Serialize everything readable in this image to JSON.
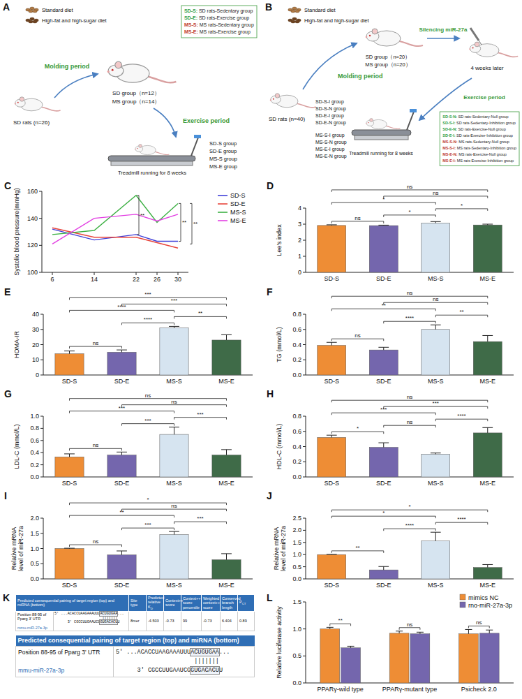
{
  "chart_data": [
    {
      "panel": "C",
      "type": "line",
      "y_label": "Systolic blood pressure(mmHg)",
      "x": [
        6,
        14,
        22,
        26,
        30
      ],
      "xlim": [
        4,
        32
      ],
      "xticks": [
        6,
        14,
        22,
        26,
        30
      ],
      "ylim": [
        100,
        160
      ],
      "yticks": [
        100,
        120,
        140,
        160
      ],
      "legend": "right",
      "series": [
        {
          "name": "SD-S",
          "color": "#3f3fd8",
          "values": [
            132,
            124,
            128,
            123,
            123
          ]
        },
        {
          "name": "SD-E",
          "color": "#e8453c",
          "values": [
            133,
            126,
            126,
            122,
            118
          ]
        },
        {
          "name": "MS-S",
          "color": "#3cb043",
          "values": [
            128,
            131,
            157,
            137,
            151
          ]
        },
        {
          "name": "MS-E",
          "color": "#e23fe2",
          "values": [
            121,
            140,
            143,
            138,
            143
          ]
        }
      ],
      "annotations": [
        {
          "x": 22,
          "y_range": [
            128,
            157
          ],
          "label": "**"
        },
        {
          "x": 30,
          "y_range": [
            123,
            151
          ],
          "label": "**"
        },
        {
          "x": 30,
          "y_range": [
            121,
            151
          ],
          "label": "**"
        }
      ]
    },
    {
      "panel": "D",
      "type": "bar",
      "y_label": "Lee's index",
      "categories": [
        "SD-S",
        "SD-E",
        "MS-S",
        "MS-E"
      ],
      "values": [
        2.92,
        2.91,
        3.07,
        2.95
      ],
      "errors": [
        0.04,
        0.03,
        0.09,
        0.05
      ],
      "colors": [
        "#ee8d35",
        "#7466ad",
        "#d6e4f0",
        "#3f6b48"
      ],
      "ylim": [
        0,
        4
      ],
      "yticks": [
        0,
        1,
        2,
        3,
        4
      ],
      "annotations": [
        {
          "groups": [
            "SD-S",
            "SD-E"
          ],
          "label": "ns"
        },
        {
          "groups": [
            "SD-E",
            "MS-S"
          ],
          "label": "*"
        },
        {
          "groups": [
            "MS-S",
            "MS-E"
          ],
          "label": "*"
        },
        {
          "groups": [
            "SD-S",
            "MS-S"
          ],
          "label": "*"
        },
        {
          "groups": [
            "SD-E",
            "MS-E"
          ],
          "label": "ns"
        },
        {
          "groups": [
            "SD-S",
            "MS-E"
          ],
          "label": "ns"
        }
      ]
    },
    {
      "panel": "E",
      "type": "bar",
      "y_label": "HOMA-IR",
      "categories": [
        "SD-S",
        "SD-E",
        "MS-S",
        "MS-E"
      ],
      "values": [
        14,
        15,
        31,
        23
      ],
      "errors": [
        1.8,
        1.5,
        1,
        3.5
      ],
      "colors": [
        "#ee8d35",
        "#7466ad",
        "#d6e4f0",
        "#3f6b48"
      ],
      "ylim": [
        0,
        40
      ],
      "yticks": [
        0,
        10,
        20,
        30,
        40
      ],
      "annotations": [
        {
          "groups": [
            "SD-S",
            "SD-E"
          ],
          "label": "ns"
        },
        {
          "groups": [
            "SD-E",
            "MS-S"
          ],
          "label": "****"
        },
        {
          "groups": [
            "MS-S",
            "MS-E"
          ],
          "label": "**"
        },
        {
          "groups": [
            "SD-S",
            "MS-S"
          ],
          "label": "****"
        },
        {
          "groups": [
            "SD-E",
            "MS-E"
          ],
          "label": "***"
        },
        {
          "groups": [
            "SD-S",
            "MS-E"
          ],
          "label": "***"
        }
      ]
    },
    {
      "panel": "F",
      "type": "bar",
      "y_label": "TG (mmol/L)",
      "categories": [
        "SD-S",
        "SD-E",
        "MS-S",
        "MS-E"
      ],
      "values": [
        0.39,
        0.33,
        0.6,
        0.44
      ],
      "errors": [
        0.04,
        0.035,
        0.06,
        0.08
      ],
      "colors": [
        "#ee8d35",
        "#7466ad",
        "#d6e4f0",
        "#3f6b48"
      ],
      "ylim": [
        0,
        0.8
      ],
      "yticks": [
        {
          "value": 0,
          "label": "0.0"
        },
        0.2,
        0.4,
        0.6,
        0.8
      ],
      "annotations": [
        {
          "groups": [
            "SD-S",
            "SD-E"
          ],
          "label": "ns"
        },
        {
          "groups": [
            "SD-E",
            "MS-S"
          ],
          "label": "****"
        },
        {
          "groups": [
            "MS-S",
            "MS-E"
          ],
          "label": "**"
        },
        {
          "groups": [
            "SD-S",
            "MS-S"
          ],
          "label": "**"
        },
        {
          "groups": [
            "SD-E",
            "MS-E"
          ],
          "label": "ns"
        },
        {
          "groups": [
            "SD-S",
            "MS-E"
          ],
          "label": "ns"
        }
      ]
    },
    {
      "panel": "G",
      "type": "bar",
      "y_label": "LDL-C (mmol/L)",
      "categories": [
        "SD-S",
        "SD-E",
        "MS-S",
        "MS-E"
      ],
      "values": [
        0.33,
        0.36,
        0.7,
        0.36
      ],
      "errors": [
        0.05,
        0.05,
        0.12,
        0.09
      ],
      "colors": [
        "#ee8d35",
        "#7466ad",
        "#d6e4f0",
        "#3f6b48"
      ],
      "ylim": [
        0,
        1
      ],
      "yticks": [
        {
          "value": 0,
          "label": "0.0"
        },
        0.2,
        0.4,
        0.6,
        0.8,
        {
          "value": 1,
          "label": "1.0"
        }
      ],
      "annotations": [
        {
          "groups": [
            "SD-S",
            "SD-E"
          ],
          "label": "ns"
        },
        {
          "groups": [
            "SD-E",
            "MS-S"
          ],
          "label": "***"
        },
        {
          "groups": [
            "MS-S",
            "MS-E"
          ],
          "label": "***"
        },
        {
          "groups": [
            "SD-S",
            "MS-S"
          ],
          "label": "***"
        },
        {
          "groups": [
            "SD-E",
            "MS-E"
          ],
          "label": "ns"
        },
        {
          "groups": [
            "SD-S",
            "MS-E"
          ],
          "label": "ns"
        }
      ]
    },
    {
      "panel": "H",
      "type": "bar",
      "y_label": "HDL-C (mmol/L)",
      "categories": [
        "SD-S",
        "SD-E",
        "MS-S",
        "MS-E"
      ],
      "values": [
        0.52,
        0.39,
        0.3,
        0.58
      ],
      "errors": [
        0.03,
        0.06,
        0.015,
        0.07
      ],
      "colors": [
        "#ee8d35",
        "#7466ad",
        "#d6e4f0",
        "#3f6b48"
      ],
      "ylim": [
        0,
        0.8
      ],
      "yticks": [
        {
          "value": 0,
          "label": "0.0"
        },
        0.2,
        0.4,
        0.6,
        0.8
      ],
      "annotations": [
        {
          "groups": [
            "SD-S",
            "SD-E"
          ],
          "label": "*"
        },
        {
          "groups": [
            "SD-E",
            "MS-S"
          ],
          "label": "ns"
        },
        {
          "groups": [
            "MS-S",
            "MS-E"
          ],
          "label": "****"
        },
        {
          "groups": [
            "SD-S",
            "MS-S"
          ],
          "label": "***"
        },
        {
          "groups": [
            "SD-E",
            "MS-E"
          ],
          "label": "***"
        },
        {
          "groups": [
            "SD-S",
            "MS-E"
          ],
          "label": "ns"
        }
      ]
    },
    {
      "panel": "I",
      "type": "bar",
      "y_label": "Relative mRNA level of miR-27a",
      "categories": [
        "SD-S",
        "SD-E",
        "MS-S",
        "MS-E"
      ],
      "values": [
        1.0,
        0.79,
        1.46,
        0.63
      ],
      "errors": [
        0.01,
        0.13,
        0.1,
        0.2
      ],
      "colors": [
        "#ee8d35",
        "#7466ad",
        "#d6e4f0",
        "#3f6b48"
      ],
      "ylim": [
        0,
        2
      ],
      "yticks": [
        {
          "value": 0,
          "label": "0.0"
        },
        0.5,
        {
          "value": 1,
          "label": "1.0"
        },
        1.5,
        {
          "value": 2,
          "label": "2.0"
        }
      ],
      "annotations": [
        {
          "groups": [
            "SD-S",
            "SD-E"
          ],
          "label": "ns"
        },
        {
          "groups": [
            "SD-E",
            "MS-S"
          ],
          "label": "***"
        },
        {
          "groups": [
            "MS-S",
            "MS-E"
          ],
          "label": "***"
        },
        {
          "groups": [
            "SD-S",
            "MS-S"
          ],
          "label": "**"
        },
        {
          "groups": [
            "SD-E",
            "MS-E"
          ],
          "label": "ns"
        },
        {
          "groups": [
            "SD-S",
            "MS-E"
          ],
          "label": "*"
        }
      ]
    },
    {
      "panel": "J",
      "type": "bar",
      "y_label": "Relative mRNA level of miR-27a",
      "categories": [
        "SD-S",
        "SD-E",
        "MS-S",
        "MS-E"
      ],
      "values": [
        1.0,
        0.37,
        1.56,
        0.47
      ],
      "errors": [
        0.01,
        0.14,
        0.36,
        0.12
      ],
      "colors": [
        "#ee8d35",
        "#7466ad",
        "#d6e4f0",
        "#3f6b48"
      ],
      "ylim": [
        0,
        2.5
      ],
      "yticks": [
        {
          "value": 0,
          "label": "0.0"
        },
        0.5,
        {
          "value": 1,
          "label": "1.0"
        },
        1.5,
        {
          "value": 2,
          "label": "2.0"
        },
        2.5
      ],
      "annotations": [
        {
          "groups": [
            "SD-S",
            "SD-E"
          ],
          "label": "**"
        },
        {
          "groups": [
            "SD-E",
            "MS-S"
          ],
          "label": "****"
        },
        {
          "groups": [
            "MS-S",
            "MS-E"
          ],
          "label": "****"
        },
        {
          "groups": [
            "SD-S",
            "MS-S"
          ],
          "label": "*"
        },
        {
          "groups": [
            "SD-S",
            "MS-E"
          ],
          "label": "*"
        }
      ]
    },
    {
      "panel": "L",
      "type": "bar",
      "y_label": "Relative luciferase activity",
      "categories": [
        "PPARγ-wild type",
        "PPARγ-mutant type",
        "Psicheck 2.0"
      ],
      "series": [
        {
          "name": "mimics NC",
          "color": "#ee8d35",
          "values": [
            1.0,
            0.92,
            0.91
          ],
          "errors": [
            0.03,
            0.04,
            0.08
          ]
        },
        {
          "name": "rno-miR-27a-3p",
          "color": "#7466ad",
          "values": [
            0.65,
            0.91,
            0.92
          ],
          "errors": [
            0.03,
            0.03,
            0.06
          ]
        }
      ],
      "ylim": [
        0,
        1.5
      ],
      "yticks": [
        {
          "value": 0,
          "label": "0.0"
        },
        0.5,
        {
          "value": 1,
          "label": "1.0"
        },
        1.5
      ],
      "legend": "top-right",
      "annotations": [
        {
          "category": "PPARγ-wild type",
          "label": "**"
        },
        {
          "category": "PPARγ-mutant type",
          "label": "ns"
        },
        {
          "category": "Psicheck 2.0",
          "label": "ns"
        }
      ]
    }
  ],
  "diagram_a": {
    "panel": "A",
    "diets": [
      "Standard diet",
      "High-fat and high-sugar diet"
    ],
    "source": "SD rats (n=26)",
    "stage1": "Molding period",
    "groups": [
      "SD group（n=12）",
      "MS group（n=14）"
    ],
    "stage2": "Exercise period",
    "treadmill": "Treadmill running for 8 weeks",
    "final_groups": [
      "SD-S group",
      "SD-E group",
      "MS-S group",
      "MS-E group"
    ],
    "legend": [
      {
        "code": "SD-S:",
        "text": " SD rats-Sedentary group",
        "color": "#2e9e44"
      },
      {
        "code": "SD-E:",
        "text": " SD rats-Exercise group",
        "color": "#2e9e44"
      },
      {
        "code": "MS-S:",
        "text": " MS rats-Sedentary group",
        "color": "#c0392b"
      },
      {
        "code": "MS-E:",
        "text": " MS rats-Exercise group",
        "color": "#c0392b"
      }
    ]
  },
  "diagram_b": {
    "panel": "B",
    "diets": [
      "Standard diet",
      "High-fat and high-sugar diet"
    ],
    "source": "SD rats (n=40)",
    "stage1": "Molding period",
    "groups": [
      "SD group（n=20）",
      "MS group（n=20）"
    ],
    "stage2": "Silencing miR-27a",
    "wait": "4 weeks later",
    "stage3": "Exercise period",
    "treadmill": "Treadmill running for 8 weeks",
    "final_groups": [
      [
        "SD-S-I group",
        "SD-S-N group",
        "SD-E-I group",
        "SD-E-N group"
      ],
      [
        "MS-S-I group",
        "MS-S-N group",
        "MS-E-I group",
        "MS-E-N group"
      ]
    ],
    "legend": [
      {
        "code": "SD-S-N:",
        "text": " SD rats-Sedentary-Null group",
        "color": "#2e9e44"
      },
      {
        "code": "SD-S-I:",
        "text": " SD rats-Sedentary-Inhibition group",
        "color": "#2e9e44"
      },
      {
        "code": "SD-E-N:",
        "text": " SD rats-Exercise-Null group",
        "color": "#2e9e44"
      },
      {
        "code": "SD-E-I:",
        "text": " SD rats-Exercise-Inhibition group",
        "color": "#2e9e44"
      },
      {
        "code": "MS-S-N:",
        "text": " MS rats-Sedentary-Null group",
        "color": "#c0392b"
      },
      {
        "code": "MS-S-I:",
        "text": " MS rats-Sedentary-Inhibition group",
        "color": "#c0392b"
      },
      {
        "code": "MS-E-N:",
        "text": " MS rats-Exercise-Null group",
        "color": "#c0392b"
      },
      {
        "code": "MS-E-I:",
        "text": " MS rats-Exercise-Inhibition group",
        "color": "#c0392b"
      }
    ]
  },
  "table_k": {
    "panel": "K",
    "summary": {
      "header": [
        "Predicted consequential pairing of target region (top) and miRNA (bottom)",
        "Site type",
        {
          "text": "Predicted relative K",
          "sub": "D"
        },
        "Context++ score",
        "Context++ score percentile",
        "Weighted context++ score",
        "Conserved branch length",
        {
          "text": "P",
          "sub": "CT"
        }
      ],
      "target_label": "Position 88-95 of Pparg 3' UTR",
      "mirna_label": "mmu-miR-27a-3p",
      "target_seq": {
        "end": "5'",
        "parts": [
          "...ACACCUAAGAAAUUU",
          "ACUGUGAA",
          "..."
        ]
      },
      "pairing": "|||||||",
      "mirna_seq": {
        "end": "3'",
        "parts": [
          "CGCCUUGAAUCG",
          "GUGACACU",
          "U"
        ]
      },
      "values": [
        "8mer",
        -4.503,
        -0.73,
        99,
        -0.73,
        6.404,
        0.89
      ]
    },
    "detail": {
      "header": "Predicted consequential pairing of target region (top) and miRNA (bottom)",
      "target_label": "Position 88-95 of Pparg 3' UTR",
      "mirna_label": "mmu-miR-27a-3p",
      "target_seq": {
        "end": "5'",
        "parts": [
          "...ACACCUAAGAAAUUU",
          "ACUGUGAA",
          "..."
        ]
      },
      "pairing": "|||||||",
      "mirna_seq": {
        "end": "3'",
        "parts": [
          "CGCCUUGAAUCG",
          "GUGACACU",
          "U"
        ]
      }
    }
  }
}
